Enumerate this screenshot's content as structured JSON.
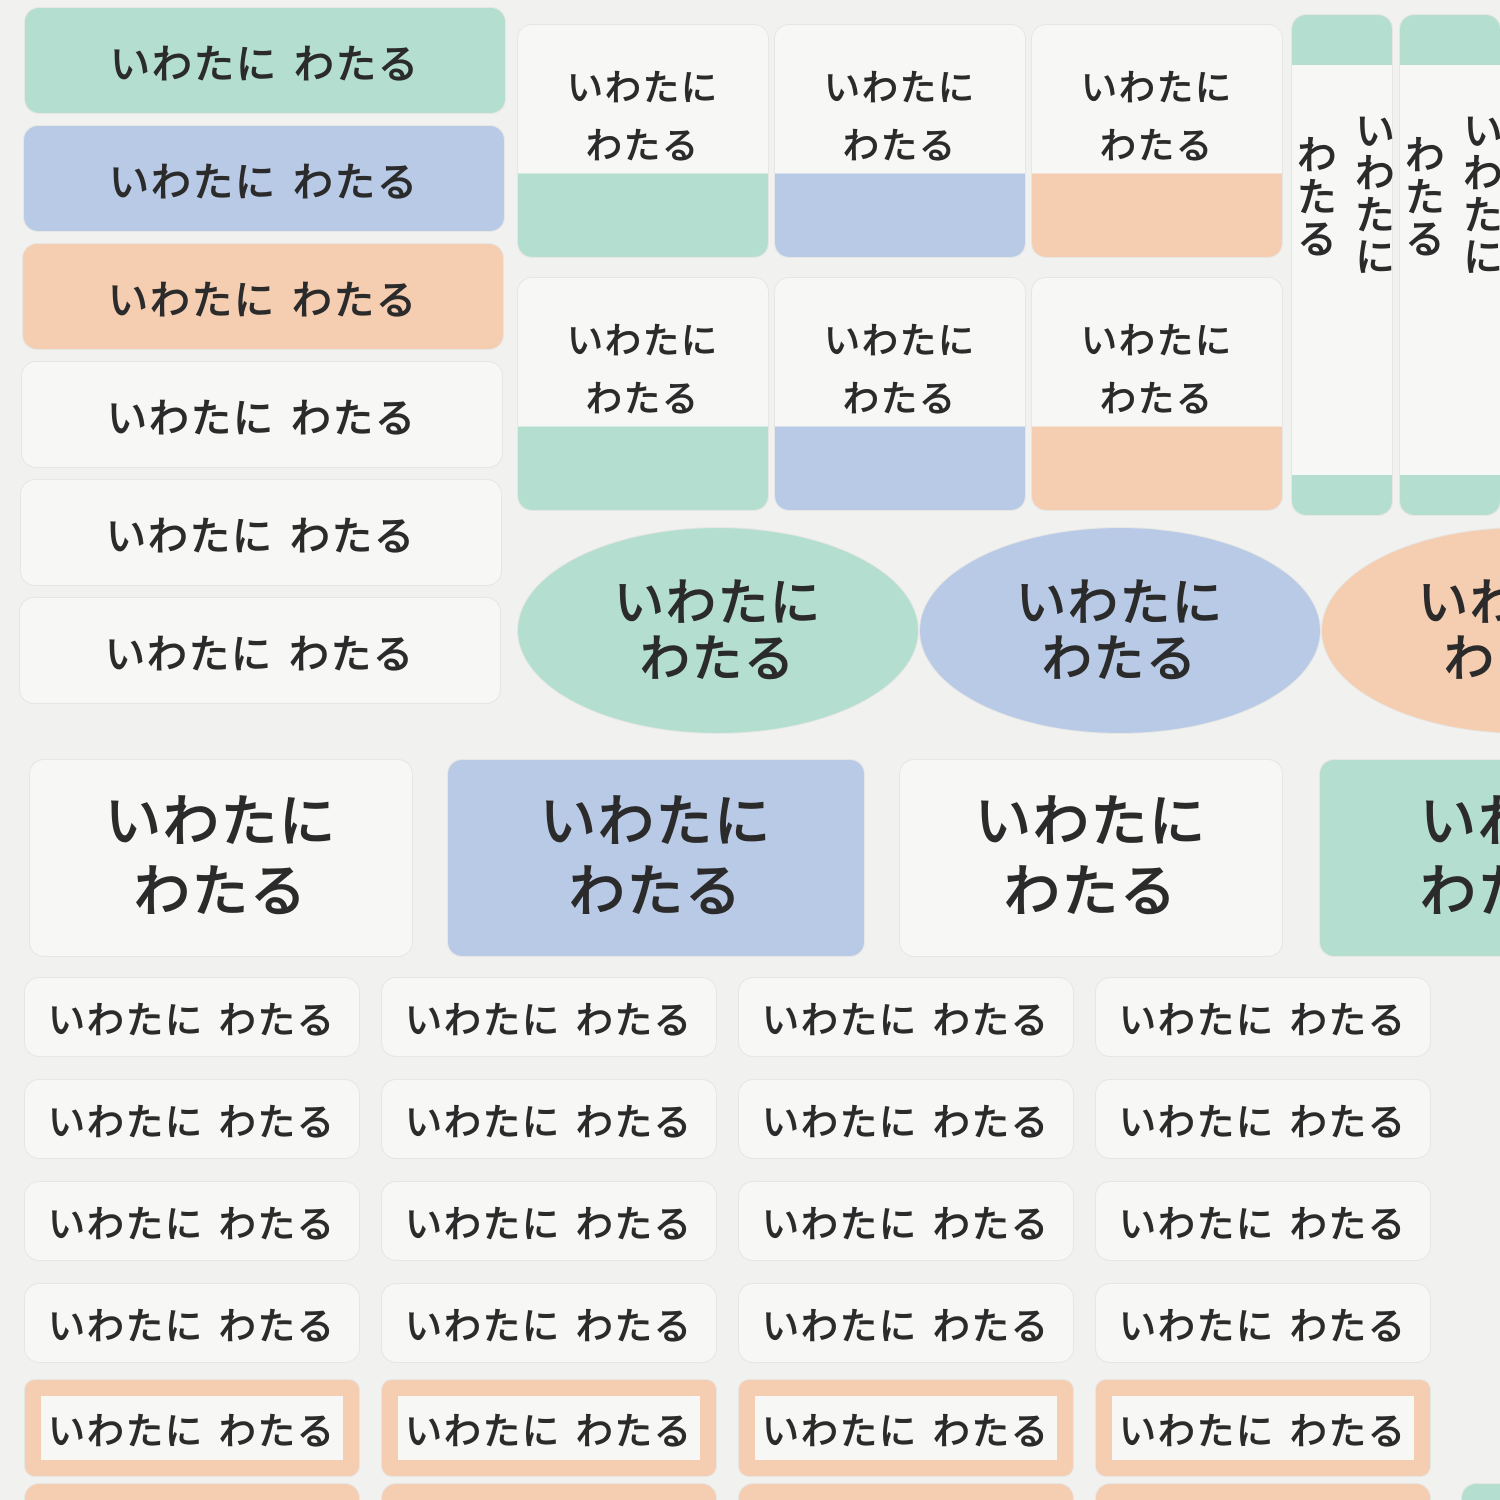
{
  "wide_labels": [
    "いわたに わたる",
    "いわたに わたる",
    "いわたに わたる",
    "いわたに わたる",
    "いわたに わたる",
    "いわたに わたる"
  ],
  "tab_labels": [
    [
      "いわたに",
      "わたる"
    ],
    [
      "いわたに",
      "わたる"
    ],
    [
      "いわたに",
      "わたる"
    ],
    [
      "いわたに",
      "わたる"
    ],
    [
      "いわたに",
      "わたる"
    ],
    [
      "いわたに",
      "わたる"
    ]
  ],
  "vertical_labels": [
    [
      "いわたに",
      "わたる"
    ],
    [
      "いわたに",
      "わたる"
    ]
  ],
  "oval_labels": [
    [
      "いわたに",
      "わたる"
    ],
    [
      "いわたに",
      "わたる"
    ],
    [
      "いわたに",
      "わたる"
    ]
  ],
  "large_labels": [
    [
      "いわたに",
      "わたる"
    ],
    [
      "いわたに",
      "わたる"
    ],
    [
      "いわたに",
      "わたる"
    ],
    [
      "いわたに",
      "わたる"
    ]
  ],
  "small_labels": [
    [
      "いわたに わたる",
      "いわたに わたる",
      "いわたに わたる",
      "いわたに わたる"
    ],
    [
      "いわたに わたる",
      "いわたに わたる",
      "いわたに わたる",
      "いわたに わたる"
    ],
    [
      "いわたに わたる",
      "いわたに わたる",
      "いわたに わたる",
      "いわたに わたる"
    ],
    [
      "いわたに わたる",
      "いわたに わたる",
      "いわたに わたる",
      "いわたに わたる"
    ],
    [
      "いわたに わたる",
      "いわたに わたる",
      "いわたに わたる",
      "いわたに わたる"
    ]
  ]
}
